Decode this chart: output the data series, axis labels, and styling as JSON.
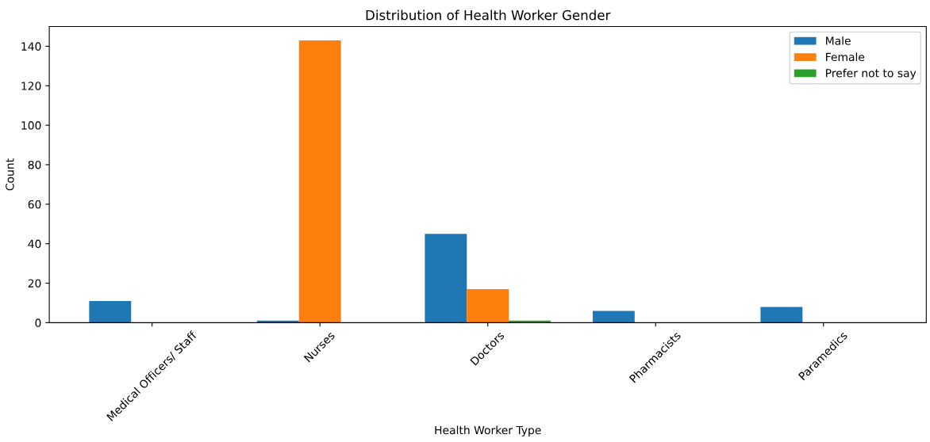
{
  "chart_data": {
    "type": "bar",
    "title": "Distribution of Health Worker Gender",
    "xlabel": "Health Worker Type",
    "ylabel": "Count",
    "categories": [
      "Medical Officers/ Staff",
      "Nurses",
      "Doctors",
      "Pharmacists",
      "Paramedics"
    ],
    "series": [
      {
        "name": "Male",
        "color": "#1f77b4",
        "values": [
          11,
          1,
          45,
          6,
          8
        ]
      },
      {
        "name": "Female",
        "color": "#ff7f0e",
        "values": [
          0,
          143,
          17,
          0,
          0
        ]
      },
      {
        "name": "Prefer not to say",
        "color": "#2ca02c",
        "values": [
          0,
          0,
          1,
          0,
          0
        ]
      }
    ],
    "ylim": [
      0,
      150
    ],
    "yticks": [
      0,
      20,
      40,
      60,
      80,
      100,
      120,
      140
    ],
    "grid": false,
    "legend": "top right"
  }
}
